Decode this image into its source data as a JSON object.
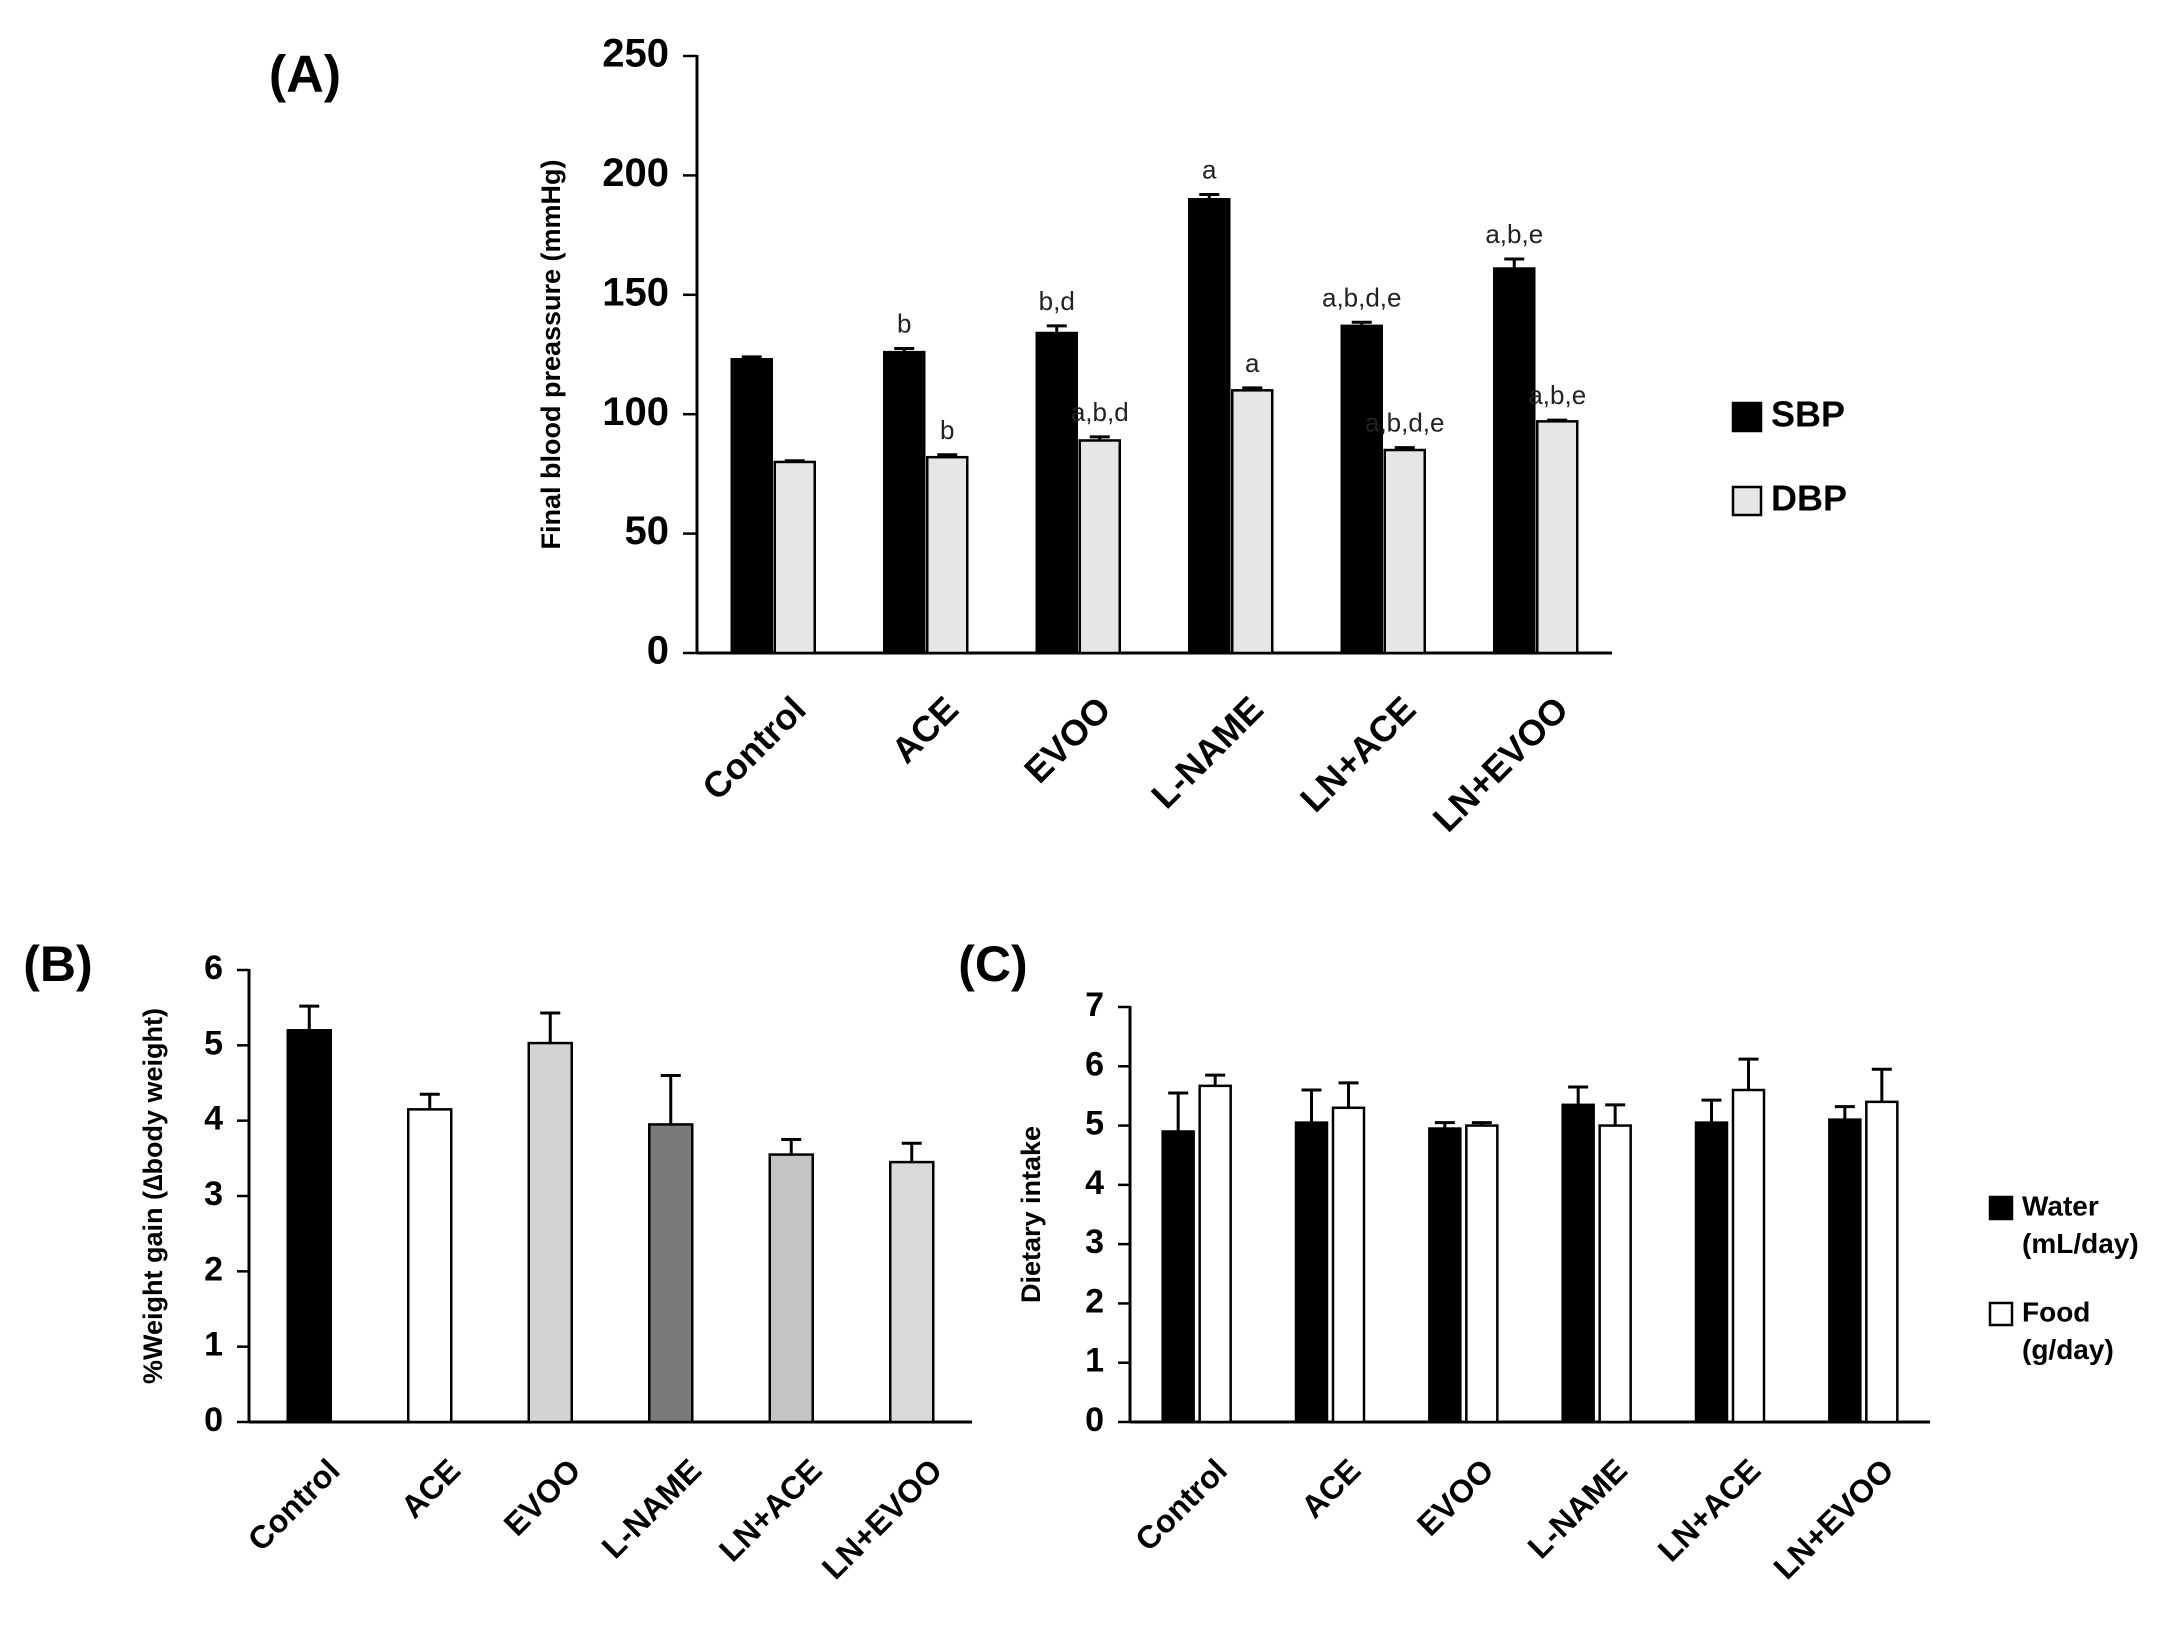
{
  "chart_data": [
    {
      "panel": "(A)",
      "type": "bar",
      "title": "",
      "xlabel": "",
      "ylabel": "Final blood preassure (mmHg)",
      "ylim": [
        0,
        250
      ],
      "yticks": [
        "0",
        "50",
        "100",
        "150",
        "200",
        "250"
      ],
      "categories": [
        "Control",
        "ACE",
        "EVOO",
        "L-NAME",
        "LN+ACE",
        "LN+EVOO"
      ],
      "series": [
        {
          "name": "SBP",
          "color": "#000000",
          "values": [
            123,
            126,
            134,
            190,
            137,
            161
          ],
          "errors": [
            1,
            1.5,
            3,
            2,
            1.5,
            4
          ],
          "annotations": [
            "",
            "b",
            "b,d",
            "a",
            "a,b,d,e",
            "a,b,e"
          ]
        },
        {
          "name": "DBP",
          "color": "#e6e6e6",
          "values": [
            80,
            82,
            89,
            110,
            85,
            97
          ],
          "errors": [
            0.5,
            1,
            1.5,
            1,
            1,
            0.5
          ],
          "annotations": [
            "",
            "b",
            "a,b,d",
            "a",
            "a,b,d,e",
            "a,b,e"
          ]
        }
      ],
      "legend": "right"
    },
    {
      "panel": "(B)",
      "type": "bar",
      "title": "",
      "xlabel": "",
      "ylabel": "%Weight gain (∆body weight)",
      "ylim": [
        0,
        6
      ],
      "yticks": [
        "0",
        "1",
        "2",
        "3",
        "4",
        "5",
        "6"
      ],
      "categories": [
        "Control",
        "ACE",
        "EVOO",
        "L-NAME",
        "LN+ACE",
        "LN+EVOO"
      ],
      "values": [
        5.2,
        4.15,
        5.03,
        3.95,
        3.55,
        3.45
      ],
      "errors": [
        0.32,
        0.2,
        0.4,
        0.65,
        0.2,
        0.25
      ],
      "colors": [
        "#000000",
        "#ffffff",
        "#d4d4d4",
        "#7a7a7a",
        "#c4c4c4",
        "#d9d9d9"
      ]
    },
    {
      "panel": "(C)",
      "type": "bar",
      "title": "",
      "xlabel": "",
      "ylabel": "Dietary intake",
      "ylim": [
        0,
        7
      ],
      "yticks": [
        "0",
        "1",
        "2",
        "3",
        "4",
        "5",
        "6",
        "7"
      ],
      "categories": [
        "Control",
        "ACE",
        "EVOO",
        "L-NAME",
        "LN+ACE",
        "LN+EVOO"
      ],
      "series": [
        {
          "name": "Water",
          "unit": "(mL/day)",
          "color": "#000000",
          "values": [
            4.9,
            5.05,
            4.95,
            5.35,
            5.05,
            5.1
          ],
          "errors": [
            0.65,
            0.55,
            0.1,
            0.3,
            0.38,
            0.22
          ]
        },
        {
          "name": "Food",
          "unit": "(g/day)",
          "color": "#ffffff",
          "values": [
            5.67,
            5.3,
            5.0,
            5.0,
            5.6,
            5.4
          ],
          "errors": [
            0.18,
            0.42,
            0.05,
            0.35,
            0.52,
            0.55
          ]
        }
      ],
      "legend": "right"
    }
  ]
}
